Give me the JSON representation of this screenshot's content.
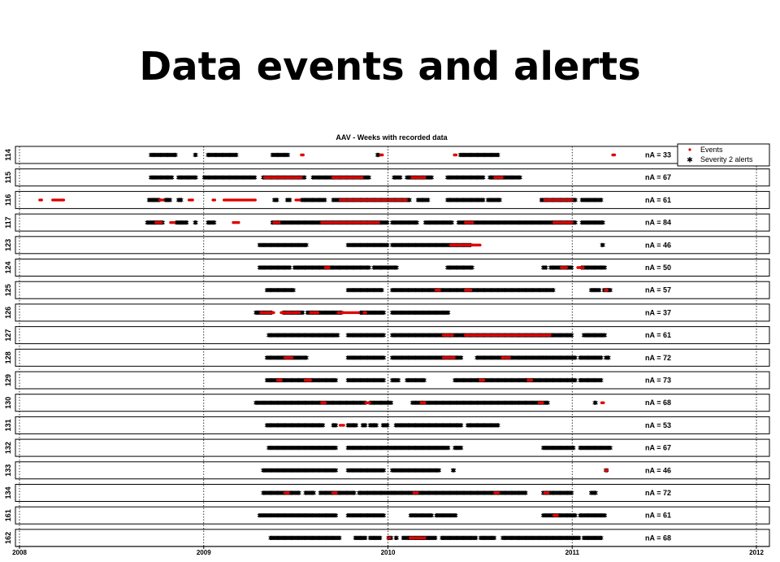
{
  "slide": {
    "title": "Data events and alerts"
  },
  "chart_data": {
    "type": "scatter",
    "title": "AAV - Weeks with recorded data",
    "x_ticks": [
      "2008",
      "2009",
      "2010",
      "2011",
      "2012"
    ],
    "xlim": [
      2008.0,
      2012.0
    ],
    "legend": {
      "placement": "top-right",
      "entries": [
        {
          "name": "Events",
          "color": "#e00000"
        },
        {
          "name": "Severity 2 alerts",
          "color": "#000000"
        }
      ]
    },
    "colors": {
      "events": "#e00000",
      "alerts": "#000000"
    },
    "rows": [
      {
        "id": "114",
        "na": "nA = 33",
        "alerts": [
          [
            2008.71,
            2008.85
          ],
          [
            2008.95,
            2008.96
          ],
          [
            2009.02,
            2009.18
          ],
          [
            2009.37,
            2009.46
          ],
          [
            2009.94,
            2009.95
          ],
          [
            2010.39,
            2010.6
          ]
        ],
        "events": [
          [
            2009.53,
            2009.54
          ],
          [
            2009.96,
            2009.97
          ],
          [
            2010.36,
            2010.37
          ],
          [
            2011.22,
            2011.23
          ]
        ]
      },
      {
        "id": "115",
        "na": "nA = 67",
        "alerts": [
          [
            2008.71,
            2008.83
          ],
          [
            2008.86,
            2008.96
          ],
          [
            2009.0,
            2009.28
          ],
          [
            2009.32,
            2009.55
          ],
          [
            2009.59,
            2009.9
          ],
          [
            2010.03,
            2010.07
          ],
          [
            2010.1,
            2010.24
          ],
          [
            2010.32,
            2010.52
          ],
          [
            2010.55,
            2010.72
          ]
        ],
        "events": [
          [
            2009.33,
            2009.53
          ],
          [
            2009.7,
            2009.86
          ],
          [
            2010.13,
            2010.2
          ],
          [
            2010.58,
            2010.62
          ]
        ]
      },
      {
        "id": "116",
        "na": "nA = 61",
        "alerts": [
          [
            2008.7,
            2008.76
          ],
          [
            2008.79,
            2008.82
          ],
          [
            2008.86,
            2008.88
          ],
          [
            2009.38,
            2009.4
          ],
          [
            2009.45,
            2009.47
          ],
          [
            2009.53,
            2009.66
          ],
          [
            2009.7,
            2010.12
          ],
          [
            2010.16,
            2010.22
          ],
          [
            2010.32,
            2010.52
          ],
          [
            2010.54,
            2010.61
          ],
          [
            2010.83,
            2011.02
          ],
          [
            2011.05,
            2011.16
          ]
        ],
        "events": [
          [
            2008.11,
            2008.12
          ],
          [
            2008.18,
            2008.24
          ],
          [
            2008.76,
            2008.78
          ],
          [
            2008.92,
            2008.94
          ],
          [
            2009.05,
            2009.06
          ],
          [
            2009.11,
            2009.28
          ],
          [
            2009.5,
            2009.52
          ],
          [
            2009.74,
            2010.1
          ],
          [
            2010.85,
            2011.0
          ]
        ]
      },
      {
        "id": "117",
        "na": "nA = 84",
        "alerts": [
          [
            2008.69,
            2008.78
          ],
          [
            2008.85,
            2008.91
          ],
          [
            2008.95,
            2008.96
          ],
          [
            2009.02,
            2009.06
          ],
          [
            2009.37,
            2010.0
          ],
          [
            2010.02,
            2010.16
          ],
          [
            2010.2,
            2010.35
          ],
          [
            2010.38,
            2011.02
          ],
          [
            2011.05,
            2011.17
          ]
        ],
        "events": [
          [
            2008.74,
            2008.77
          ],
          [
            2008.82,
            2008.84
          ],
          [
            2009.16,
            2009.19
          ],
          [
            2009.38,
            2009.41
          ],
          [
            2009.64,
            2009.95
          ],
          [
            2010.42,
            2010.46
          ],
          [
            2010.9,
            2011.0
          ]
        ]
      },
      {
        "id": "123",
        "na": "nA = 46",
        "alerts": [
          [
            2009.3,
            2009.56
          ],
          [
            2009.78,
            2010.0
          ],
          [
            2010.02,
            2010.45
          ],
          [
            2011.16,
            2011.17
          ]
        ],
        "events": [
          [
            2010.34,
            2010.5
          ]
        ]
      },
      {
        "id": "124",
        "na": "nA = 50",
        "alerts": [
          [
            2009.3,
            2009.47
          ],
          [
            2009.49,
            2009.9
          ],
          [
            2009.92,
            2010.05
          ],
          [
            2010.32,
            2010.46
          ],
          [
            2010.84,
            2010.86
          ],
          [
            2010.88,
            2011.0
          ],
          [
            2011.05,
            2011.18
          ]
        ],
        "events": [
          [
            2009.66,
            2009.68
          ],
          [
            2010.94,
            2010.97
          ],
          [
            2011.03,
            2011.06
          ]
        ]
      },
      {
        "id": "125",
        "na": "nA = 57",
        "alerts": [
          [
            2009.34,
            2009.49
          ],
          [
            2009.78,
            2009.97
          ],
          [
            2010.02,
            2010.9
          ],
          [
            2011.1,
            2011.15
          ],
          [
            2011.17,
            2011.21
          ]
        ],
        "events": [
          [
            2010.26,
            2010.28
          ],
          [
            2010.42,
            2010.45
          ],
          [
            2011.18,
            2011.19
          ]
        ]
      },
      {
        "id": "126",
        "na": "nA = 37",
        "alerts": [
          [
            2009.28,
            2009.37
          ],
          [
            2009.43,
            2009.54
          ],
          [
            2009.56,
            2009.75
          ],
          [
            2009.85,
            2009.98
          ],
          [
            2010.02,
            2010.33
          ]
        ],
        "events": [
          [
            2009.31,
            2009.38
          ],
          [
            2009.42,
            2009.52
          ],
          [
            2009.58,
            2009.62
          ],
          [
            2009.73,
            2009.84
          ],
          [
            2009.87,
            2009.88
          ]
        ]
      },
      {
        "id": "127",
        "na": "nA = 61",
        "alerts": [
          [
            2009.35,
            2009.73
          ],
          [
            2009.78,
            2009.98
          ],
          [
            2010.02,
            2011.0
          ],
          [
            2011.06,
            2011.18
          ]
        ],
        "events": [
          [
            2010.3,
            2010.35
          ],
          [
            2010.42,
            2010.88
          ]
        ]
      },
      {
        "id": "128",
        "na": "nA = 72",
        "alerts": [
          [
            2009.34,
            2009.56
          ],
          [
            2009.78,
            2009.98
          ],
          [
            2010.02,
            2010.4
          ],
          [
            2010.48,
            2010.84
          ],
          [
            2010.84,
            2011.02
          ],
          [
            2011.04,
            2011.16
          ],
          [
            2011.18,
            2011.2
          ]
        ],
        "events": [
          [
            2009.44,
            2009.48
          ],
          [
            2010.3,
            2010.36
          ],
          [
            2010.62,
            2010.66
          ]
        ]
      },
      {
        "id": "129",
        "na": "nA = 73",
        "alerts": [
          [
            2009.34,
            2009.72
          ],
          [
            2009.78,
            2009.98
          ],
          [
            2010.02,
            2010.06
          ],
          [
            2010.1,
            2010.2
          ],
          [
            2010.36,
            2011.02
          ],
          [
            2011.04,
            2011.16
          ]
        ],
        "events": [
          [
            2009.4,
            2009.42
          ],
          [
            2009.55,
            2009.58
          ],
          [
            2010.5,
            2010.52
          ],
          [
            2010.76,
            2010.78
          ]
        ]
      },
      {
        "id": "130",
        "na": "nA = 68",
        "alerts": [
          [
            2009.28,
            2009.88
          ],
          [
            2009.9,
            2010.02
          ],
          [
            2010.13,
            2010.87
          ],
          [
            2011.12,
            2011.13
          ]
        ],
        "events": [
          [
            2009.64,
            2009.66
          ],
          [
            2009.88,
            2009.9
          ],
          [
            2010.18,
            2010.2
          ],
          [
            2010.82,
            2010.84
          ],
          [
            2011.16,
            2011.17
          ]
        ]
      },
      {
        "id": "131",
        "na": "nA = 53",
        "alerts": [
          [
            2009.34,
            2009.65
          ],
          [
            2009.7,
            2009.72
          ],
          [
            2009.78,
            2009.83
          ],
          [
            2009.86,
            2009.88
          ],
          [
            2009.9,
            2009.94
          ],
          [
            2009.97,
            2010.0
          ],
          [
            2010.04,
            2010.4
          ],
          [
            2010.43,
            2010.6
          ]
        ],
        "events": [
          [
            2009.74,
            2009.76
          ]
        ]
      },
      {
        "id": "132",
        "na": "nA = 67",
        "alerts": [
          [
            2009.35,
            2009.72
          ],
          [
            2009.78,
            2010.33
          ],
          [
            2010.36,
            2010.4
          ],
          [
            2010.84,
            2011.01
          ],
          [
            2011.04,
            2011.21
          ]
        ],
        "events": []
      },
      {
        "id": "133",
        "na": "nA = 46",
        "alerts": [
          [
            2009.32,
            2009.72
          ],
          [
            2009.78,
            2009.98
          ],
          [
            2010.02,
            2010.28
          ],
          [
            2010.35,
            2010.36
          ],
          [
            2011.18,
            2011.19
          ]
        ],
        "events": [
          [
            2011.18,
            2011.19
          ]
        ]
      },
      {
        "id": "134",
        "na": "nA = 72",
        "alerts": [
          [
            2009.32,
            2009.52
          ],
          [
            2009.55,
            2009.6
          ],
          [
            2009.63,
            2009.82
          ],
          [
            2009.84,
            2010.02
          ],
          [
            2010.02,
            2010.75
          ],
          [
            2010.84,
            2011.0
          ],
          [
            2011.1,
            2011.13
          ]
        ],
        "events": [
          [
            2009.44,
            2009.46
          ],
          [
            2009.7,
            2009.72
          ],
          [
            2010.14,
            2010.16
          ],
          [
            2010.58,
            2010.6
          ],
          [
            2010.85,
            2010.87
          ]
        ]
      },
      {
        "id": "161",
        "na": "nA = 61",
        "alerts": [
          [
            2009.3,
            2009.72
          ],
          [
            2009.78,
            2009.98
          ],
          [
            2010.12,
            2010.24
          ],
          [
            2010.26,
            2010.37
          ],
          [
            2010.84,
            2011.02
          ],
          [
            2011.04,
            2011.18
          ]
        ],
        "events": [
          [
            2010.9,
            2010.92
          ]
        ]
      },
      {
        "id": "162",
        "na": "nA = 68",
        "alerts": [
          [
            2009.36,
            2009.74
          ],
          [
            2009.82,
            2009.88
          ],
          [
            2009.9,
            2009.96
          ],
          [
            2010.0,
            2010.02
          ],
          [
            2010.04,
            2010.05
          ],
          [
            2010.08,
            2010.26
          ],
          [
            2010.29,
            2010.48
          ],
          [
            2010.5,
            2010.58
          ],
          [
            2010.62,
            2011.04
          ],
          [
            2011.06,
            2011.16
          ]
        ],
        "events": [
          [
            2010.0,
            2010.01
          ],
          [
            2010.12,
            2010.2
          ]
        ]
      }
    ]
  }
}
